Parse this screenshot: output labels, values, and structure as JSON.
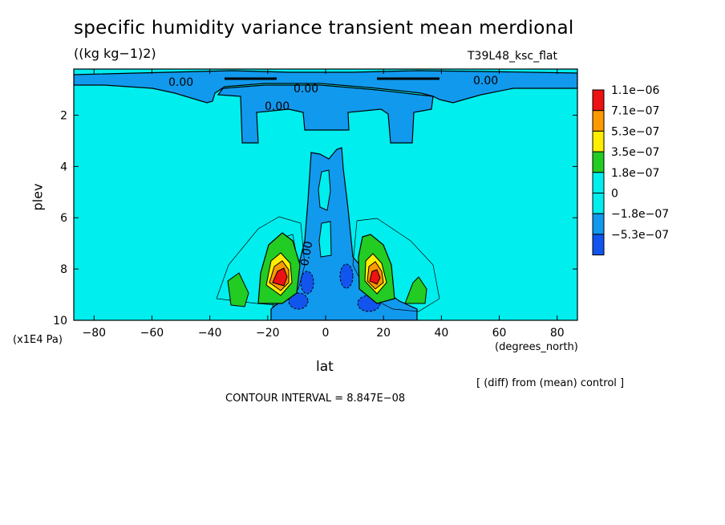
{
  "title": "specific humidity variance transient mean merdional",
  "units": "((kg kg−1)2)",
  "run_label": "T39L48_ksc_flat",
  "footer_diff": "[ (diff) from (mean) control ]",
  "footer_interval": "CONTOUR INTERVAL = 8.847E−08",
  "chart_data": {
    "type": "contour",
    "xlabel": "lat",
    "xunits": "(degrees_north)",
    "ylabel": "plev",
    "yunits": "(x1E4 Pa)",
    "xlim": [
      -87,
      87
    ],
    "ylim": [
      10,
      0.2
    ],
    "x_ticks": [
      -80,
      -60,
      -40,
      -20,
      0,
      20,
      40,
      60,
      80
    ],
    "y_ticks": [
      2,
      4,
      6,
      8,
      10
    ],
    "contour_interval": 8.847e-08,
    "contour_labels": [
      "0.00",
      "0.00",
      "0.00",
      "0.00",
      "0.00"
    ],
    "colorbar": {
      "labels": [
        "1.1e−06",
        "7.1e−07",
        "5.3e−07",
        "3.5e−07",
        "1.8e−07",
        "0",
        "−1.8e−07",
        "−5.3e−07"
      ],
      "colors": [
        "#ee1111",
        "#ff9900",
        "#ffee00",
        "#22cc22",
        "#00eeee",
        "#00eeee",
        "#1199ee",
        "#1155ee"
      ]
    },
    "colors": {
      "background": "#00eeee",
      "negative": "#1199ee",
      "strong_negative": "#1155ee",
      "light_positive": "#22cc22",
      "mid_positive": "#ffee00",
      "high_positive": "#ff9900",
      "max_positive": "#ee1111"
    }
  }
}
